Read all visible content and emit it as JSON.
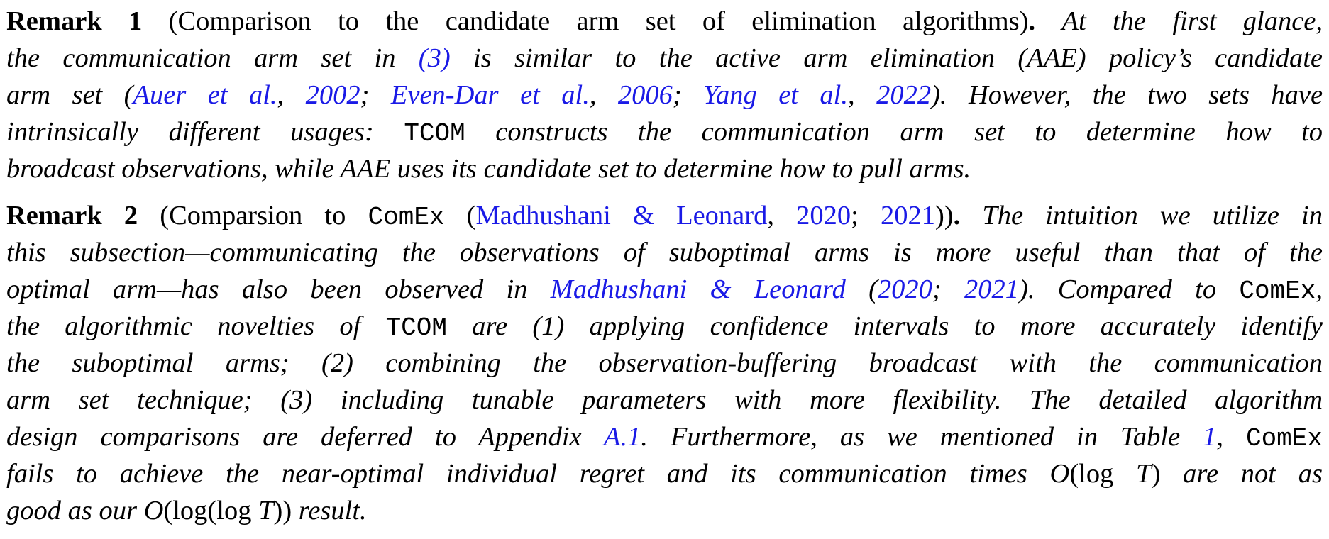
{
  "remark1": {
    "label": "Remark 1",
    "title": "(Comparison to the candidate arm set of elimination algorithms)",
    "title_end": ".",
    "l1_tail": "At the first glance,",
    "l2_a": "the communication arm set in ",
    "l2_ref_open": "(",
    "l2_ref": "3",
    "l2_ref_close": ")",
    "l2_b": " is similar to the active arm elimination (AAE) policy’s candidate",
    "l3_a": "arm set (",
    "cite1_author": "Auer et al.",
    "cite1_sep": ", ",
    "cite1_year": "2002",
    "semi1": "; ",
    "cite2_author": "Even-Dar et al.",
    "cite2_sep": ", ",
    "cite2_year": "2006",
    "semi2": "; ",
    "cite3_author": "Yang et al.",
    "cite3_sep": ", ",
    "cite3_year": "2022",
    "l3_b": "). However, the two sets have",
    "l4_a": "intrinsically different usages: ",
    "l4_tt": "TCOM",
    "l4_b": " constructs the communication arm set to determine how to",
    "l5": "broadcast observations, while AAE uses its candidate set to determine how to pull arms."
  },
  "remark2": {
    "label": "Remark 2",
    "title_a": "(Comparsion to ",
    "title_tt": "ComEx",
    "title_b": " (",
    "cite_author": "Madhushani & Leonard",
    "cite_sep": ", ",
    "cite_year1": "2020",
    "cite_semi": "; ",
    "cite_year2": "2021",
    "title_c": "))",
    "title_end": ".",
    "l1_tail": "The intuition we utilize in",
    "l2": "this subsection—communicating the observations of suboptimal arms is more useful than that of the",
    "l3_a": "optimal arm—has also been observed in ",
    "l3_cite_author": "Madhushani & Leonard",
    "l3_paren_open": " (",
    "l3_year1": "2020",
    "l3_semi": "; ",
    "l3_year2": "2021",
    "l3_b": "). Compared to ",
    "l3_tt": "ComEx",
    "l3_c": ",",
    "l4_a": "the algorithmic novelties of ",
    "l4_tt": "TCOM",
    "l4_b": " are (1) applying confidence intervals to more accurately identify",
    "l5": "the suboptimal arms; (2) combining the observation-buffering broadcast with the communication",
    "l6": "arm set technique; (3) including tunable parameters with more flexibility. The detailed algorithm",
    "l7_a": "design comparisons are deferred to Appendix ",
    "l7_ref": "A.1",
    "l7_b": ". Furthermore, as we mentioned in Table ",
    "l7_ref2": "1",
    "l7_c": ", ",
    "l7_tt": "ComEx",
    "l8_a": "fails to achieve the near-optimal individual regret and its communication times ",
    "l8_m1": "O",
    "l8_m2": "(log ",
    "l8_m3": "T",
    "l8_m4": ")",
    "l8_b": " are not as",
    "l9_a": "good as our ",
    "l9_m1": "O",
    "l9_m2": "(log(log ",
    "l9_m3": "T",
    "l9_m4": "))",
    "l9_b": " result."
  }
}
